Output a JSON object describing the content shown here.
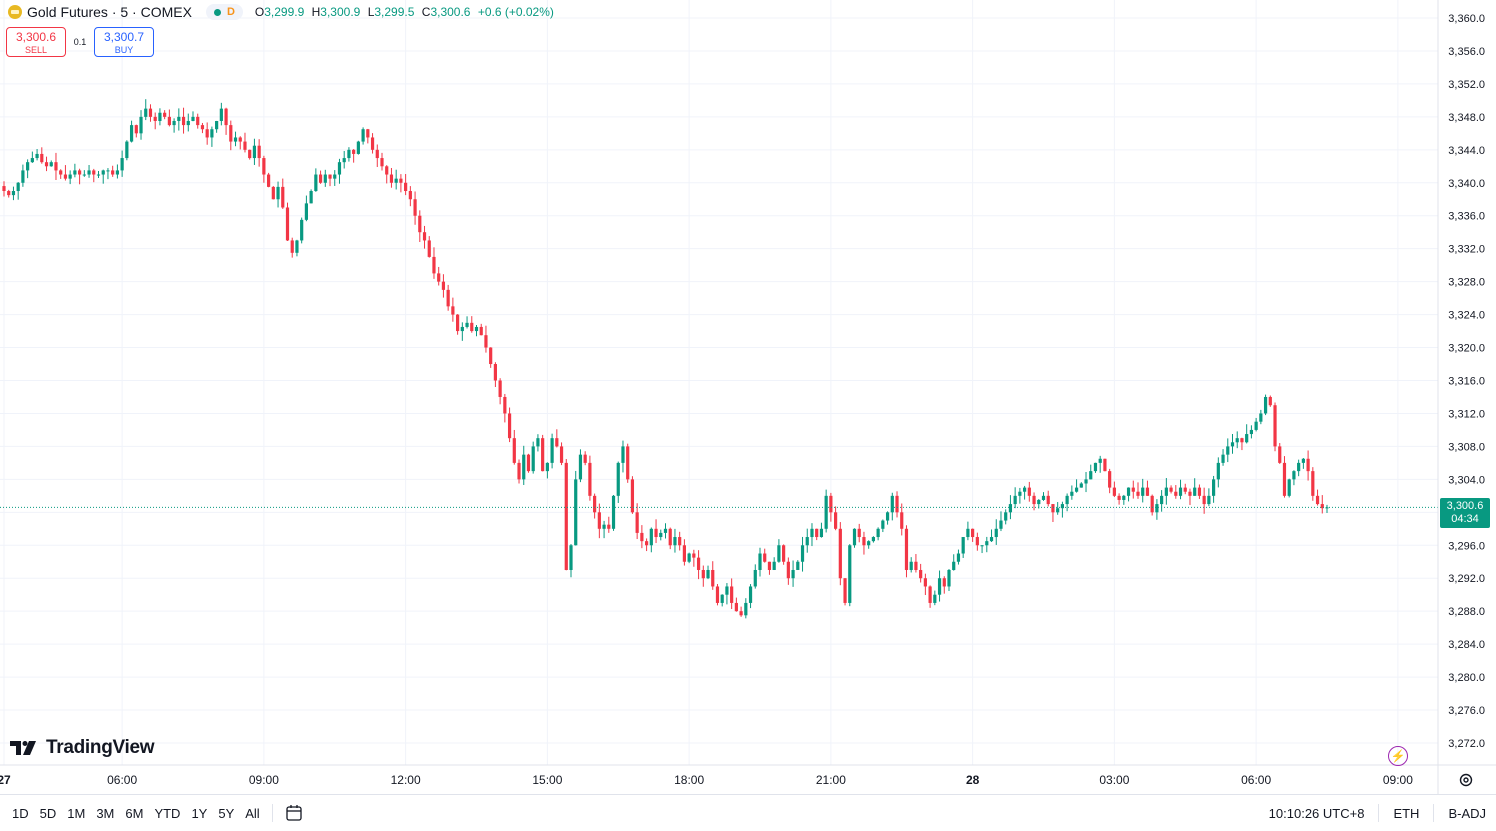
{
  "header": {
    "symbol": "Gold Futures · 5 · COMEX",
    "badge": "D",
    "o_label": "O",
    "o_val": "3,299.9",
    "h_label": "H",
    "h_val": "3,300.9",
    "l_label": "L",
    "l_val": "3,299.5",
    "c_label": "C",
    "c_val": "3,300.6",
    "change": "+0.6 (+0.02%)"
  },
  "trade": {
    "sell_price": "3,300.6",
    "sell_label": "SELL",
    "spread": "0.1",
    "buy_price": "3,300.7",
    "buy_label": "BUY"
  },
  "last_price": {
    "price": "3,300.6",
    "countdown": "04:34",
    "value": 3300.6
  },
  "logo": "TradingView",
  "bottom": {
    "ranges": [
      "1D",
      "5D",
      "1M",
      "3M",
      "6M",
      "YTD",
      "1Y",
      "5Y",
      "All"
    ],
    "time": "10:10:26 UTC+8",
    "session": "ETH",
    "adj": "B-ADJ"
  },
  "colors": {
    "up": "#089981",
    "down": "#f23645",
    "grid": "#f0f3fa"
  },
  "chart_data": {
    "type": "candlestick",
    "ylim": [
      3268,
      3362
    ],
    "y_ticks": [
      3272,
      3276,
      3280,
      3284,
      3288,
      3292,
      3296,
      3300,
      3304,
      3308,
      3312,
      3316,
      3320,
      3324,
      3328,
      3332,
      3336,
      3340,
      3344,
      3348,
      3352,
      3356,
      3360
    ],
    "y_tick_labels": [
      "3,272.0",
      "3,276.0",
      "3,280.0",
      "3,284.0",
      "3,288.0",
      "3,292.0",
      "3,296.0",
      "3,300.0",
      "3,304.0",
      "3,308.0",
      "3,312.0",
      "3,316.0",
      "3,320.0",
      "3,324.0",
      "3,328.0",
      "3,332.0",
      "3,336.0",
      "3,340.0",
      "3,344.0",
      "3,348.0",
      "3,352.0",
      "3,356.0",
      "3,360.0"
    ],
    "x_ticks": [
      {
        "label": "27",
        "bar": 0,
        "bold": true
      },
      {
        "label": "06:00",
        "bar": 25
      },
      {
        "label": "09:00",
        "bar": 55
      },
      {
        "label": "12:00",
        "bar": 85
      },
      {
        "label": "15:00",
        "bar": 115
      },
      {
        "label": "18:00",
        "bar": 145
      },
      {
        "label": "21:00",
        "bar": 175
      },
      {
        "label": "28",
        "bar": 205,
        "bold": true
      },
      {
        "label": "03:00",
        "bar": 235
      },
      {
        "label": "06:00",
        "bar": 265
      },
      {
        "label": "09:00",
        "bar": 295
      }
    ],
    "closes": [
      3339,
      3338.5,
      3339,
      3340,
      3341.5,
      3342.5,
      3343,
      3343.5,
      3342.5,
      3342,
      3342.5,
      3341.5,
      3341,
      3340.5,
      3341,
      3341.5,
      3341,
      3341,
      3341.5,
      3341,
      3341,
      3341.5,
      3341.5,
      3341,
      3341.5,
      3343,
      3345,
      3347,
      3346,
      3348,
      3349,
      3348,
      3347.5,
      3348.5,
      3348,
      3347,
      3347.5,
      3348,
      3347,
      3347.5,
      3348,
      3347,
      3346.5,
      3345.5,
      3346.5,
      3347.5,
      3349,
      3347,
      3345,
      3345.5,
      3345,
      3344,
      3343,
      3344.5,
      3343,
      3341,
      3339.5,
      3338,
      3339.5,
      3337,
      3333,
      3331.5,
      3333,
      3335.5,
      3337.5,
      3339,
      3341,
      3340,
      3341,
      3340.5,
      3341,
      3342.5,
      3343,
      3344,
      3343.5,
      3345,
      3346.5,
      3345.5,
      3344,
      3343,
      3342,
      3341,
      3340,
      3340.5,
      3340,
      3339,
      3338,
      3336,
      3334,
      3333,
      3331,
      3329,
      3328,
      3327,
      3325,
      3324,
      3322,
      3322.5,
      3323,
      3322,
      3322.5,
      3321.5,
      3320,
      3318,
      3316,
      3314,
      3312,
      3309,
      3306,
      3304,
      3307,
      3305,
      3308,
      3309,
      3305,
      3306,
      3309,
      3308,
      3306,
      3293,
      3296,
      3304,
      3307,
      3306,
      3302,
      3300,
      3298,
      3298.5,
      3298,
      3302,
      3306,
      3308,
      3304,
      3300,
      3297.5,
      3296.5,
      3296,
      3298,
      3297,
      3297.5,
      3298,
      3296,
      3297,
      3296,
      3294,
      3295,
      3294.5,
      3293,
      3292,
      3293,
      3291,
      3289,
      3290,
      3291,
      3289,
      3288,
      3287.5,
      3289,
      3291,
      3293,
      3295,
      3294,
      3293,
      3294,
      3296,
      3294,
      3292,
      3293,
      3294,
      3296,
      3297,
      3298,
      3297,
      3298,
      3302,
      3300,
      3298,
      3292,
      3289,
      3296,
      3298,
      3297,
      3296,
      3296.5,
      3297,
      3298,
      3299,
      3300,
      3302,
      3300,
      3298,
      3293,
      3294,
      3293,
      3292,
      3291,
      3289,
      3290,
      3292,
      3291,
      3293,
      3294,
      3295,
      3297,
      3298,
      3297,
      3296,
      3296,
      3296.5,
      3297,
      3298,
      3299,
      3300,
      3301,
      3302,
      3302.5,
      3303,
      3302,
      3301,
      3301.5,
      3302,
      3301,
      3300,
      3300.5,
      3301,
      3302,
      3302.5,
      3303,
      3303.5,
      3304,
      3305,
      3306,
      3306.5,
      3305,
      3303,
      3302,
      3301.5,
      3302,
      3303,
      3302.5,
      3302,
      3303,
      3302,
      3300,
      3301,
      3302,
      3303,
      3302.5,
      3302,
      3303,
      3302.5,
      3302,
      3303,
      3302,
      3301,
      3302,
      3304,
      3306,
      3307,
      3308,
      3308.5,
      3309,
      3308.5,
      3309.5,
      3310,
      3311,
      3312,
      3314,
      3313,
      3308,
      3306,
      3302,
      3304,
      3305,
      3306,
      3306.5,
      3305,
      3302,
      3301,
      3300.5,
      3300.6
    ]
  }
}
